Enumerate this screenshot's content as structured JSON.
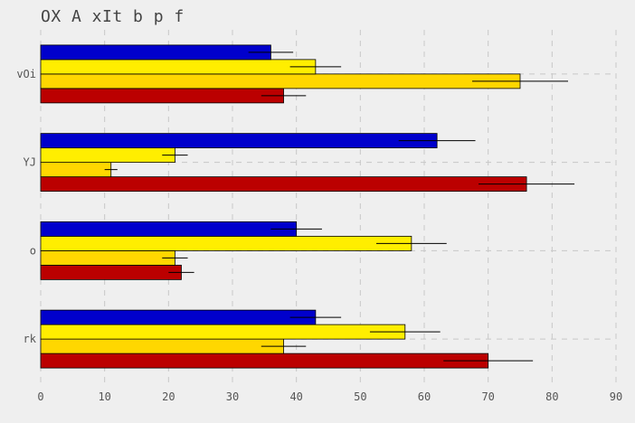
{
  "chart_data": {
    "type": "bar",
    "orientation": "horizontal",
    "title": "OX A xIt b p f",
    "xlabel": "",
    "ylabel": "",
    "xlim": [
      0,
      90
    ],
    "x_ticks": [
      0,
      10,
      20,
      30,
      40,
      50,
      60,
      70,
      80,
      90
    ],
    "categories": [
      "rk",
      "o",
      "YJ",
      "vOi"
    ],
    "grid": true,
    "series": [
      {
        "color": "#bb0000",
        "values": [
          70,
          22,
          76,
          38
        ],
        "errors": [
          7,
          2,
          7.5,
          3.5
        ]
      },
      {
        "color": "#ffd700",
        "values": [
          38,
          21,
          11,
          75
        ],
        "errors": [
          3.5,
          2,
          1,
          7.5
        ]
      },
      {
        "color": "#ffee00",
        "values": [
          57,
          58,
          21,
          43
        ],
        "errors": [
          5.5,
          5.5,
          2,
          4
        ]
      },
      {
        "color": "#0000cc",
        "values": [
          43,
          40,
          62,
          36
        ],
        "errors": [
          4,
          4,
          6,
          3.5
        ]
      }
    ]
  }
}
